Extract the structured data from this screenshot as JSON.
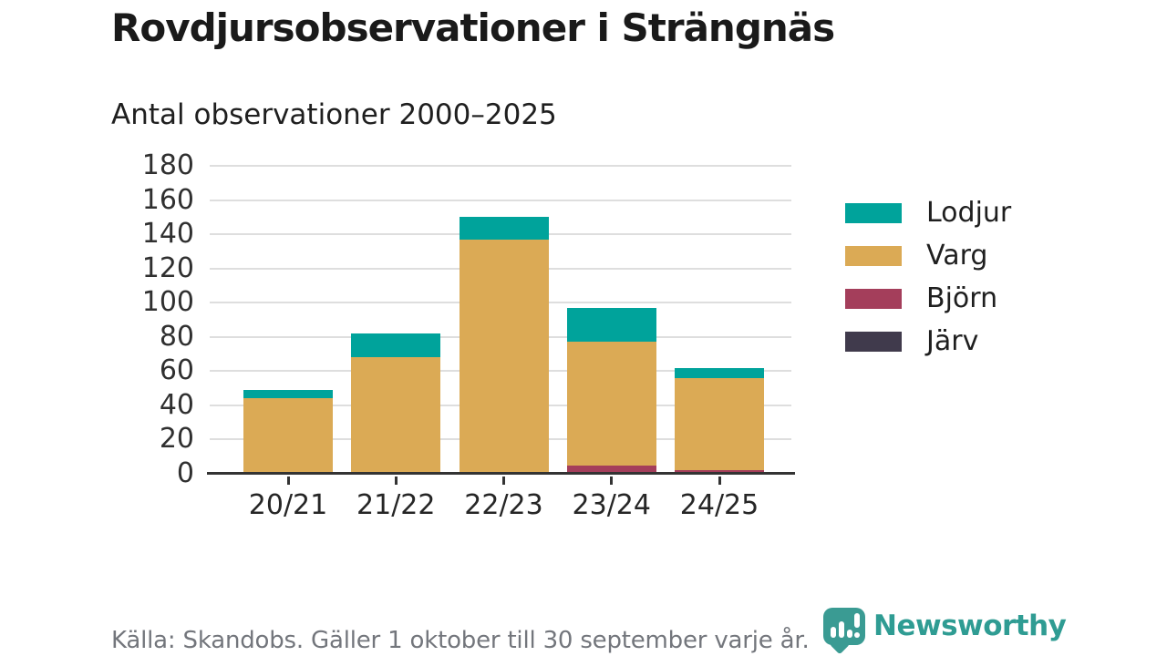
{
  "chart_data": {
    "type": "bar",
    "stacked": true,
    "title": "Rovdjursobservationer i Strängnäs",
    "subtitle": "Antal observationer 2000–2025",
    "categories": [
      "20/21",
      "21/22",
      "22/23",
      "23/24",
      "24/25"
    ],
    "series": [
      {
        "name": "Lodjur",
        "color": "#00a39b",
        "values": [
          5,
          14,
          13,
          20,
          6
        ]
      },
      {
        "name": "Varg",
        "color": "#dbaa55",
        "values": [
          44,
          68,
          137,
          72,
          54
        ]
      },
      {
        "name": "Björn",
        "color": "#a43e5b",
        "values": [
          0,
          0,
          0,
          5,
          2
        ]
      },
      {
        "name": "Järv",
        "color": "#403a4c",
        "values": [
          0,
          0,
          0,
          0,
          0
        ]
      }
    ],
    "totals": [
      49,
      82,
      150,
      97,
      62
    ],
    "ylim": [
      0,
      180
    ],
    "ytick_step": 20,
    "yticks": [
      0,
      20,
      40,
      60,
      80,
      100,
      120,
      140,
      160,
      180
    ],
    "grid": true,
    "legend_position": "right",
    "source": "Källa: Skandobs. Gäller 1 oktober till 30 september varje år."
  },
  "branding": {
    "logo_text": "Newsworthy",
    "logo_color": "#2f9c93",
    "logo_icon": "speech-bubble-bar-chart-icon"
  },
  "colors": {
    "axis": "#333333",
    "grid": "#dedede",
    "tick_label": "#303030",
    "title": "#1a1a1a",
    "source_text": "#73767c"
  }
}
